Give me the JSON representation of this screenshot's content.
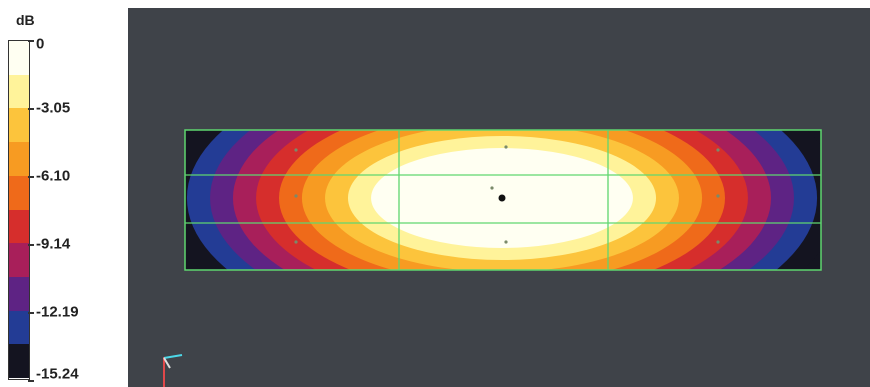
{
  "chart_data": {
    "type": "heatmap",
    "unit": "dB",
    "scale_labels": [
      "0",
      "-3.05",
      "-6.10",
      "-9.14",
      "-12.19",
      "-15.24"
    ],
    "range": [
      -15.24,
      0
    ],
    "levels": [
      {
        "min": -1.52,
        "max": 0,
        "color": "#fffff2"
      },
      {
        "min": -3.05,
        "max": -1.52,
        "color": "#fff39a"
      },
      {
        "min": -4.57,
        "max": -3.05,
        "color": "#fcc43c"
      },
      {
        "min": -6.1,
        "max": -4.57,
        "color": "#f79b22"
      },
      {
        "min": -7.62,
        "max": -6.1,
        "color": "#ef6a1a"
      },
      {
        "min": -9.14,
        "max": -7.62,
        "color": "#d62e2c"
      },
      {
        "min": -10.67,
        "max": -9.14,
        "color": "#a81f5a"
      },
      {
        "min": -12.19,
        "max": -10.67,
        "color": "#5e2384"
      },
      {
        "min": -13.72,
        "max": -12.19,
        "color": "#233c95"
      },
      {
        "min": -15.24,
        "max": -13.72,
        "color": "#141420"
      }
    ],
    "background_color": "#3f4349",
    "grid_color": "#5fd66f"
  }
}
